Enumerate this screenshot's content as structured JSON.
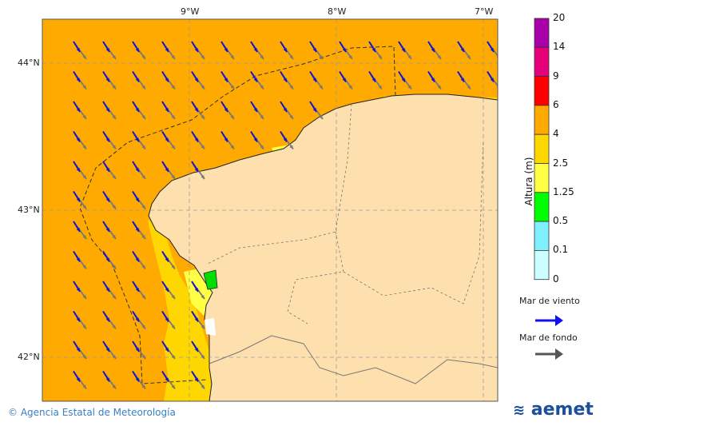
{
  "map": {
    "lon_labels": [
      "9°W",
      "8°W",
      "7°W"
    ],
    "lat_labels": [
      "44°N",
      "43°N",
      "42°N"
    ],
    "colors": {
      "sea": "#FFAA00",
      "land": "#FDE0AE",
      "band_2_5_4": "#FFD700",
      "band_1_25_2_5": "#FFFF44",
      "band_0_5_1_25": "#00FF00"
    },
    "wind_sea_arrow_color": "#1010D0",
    "swell_arrow_color": "#777777",
    "arrow_direction": "south-east"
  },
  "colorbar": {
    "title": "Altura (m)",
    "ticks": [
      "20",
      "14",
      "9",
      "6",
      "4",
      "2.5",
      "1.25",
      "0.5",
      "0.1",
      "0"
    ],
    "colors": [
      "#AA00AA",
      "#E6007A",
      "#FF0000",
      "#FFAA00",
      "#FFD700",
      "#FFFF44",
      "#00FF00",
      "#80F0FF",
      "#CCFFFF"
    ]
  },
  "legend": {
    "wind_sea": "Mar de viento",
    "swell": "Mar de fondo"
  },
  "footer": {
    "copyright": "© Agencia Estatal de Meteorología",
    "logo": "aemet"
  }
}
